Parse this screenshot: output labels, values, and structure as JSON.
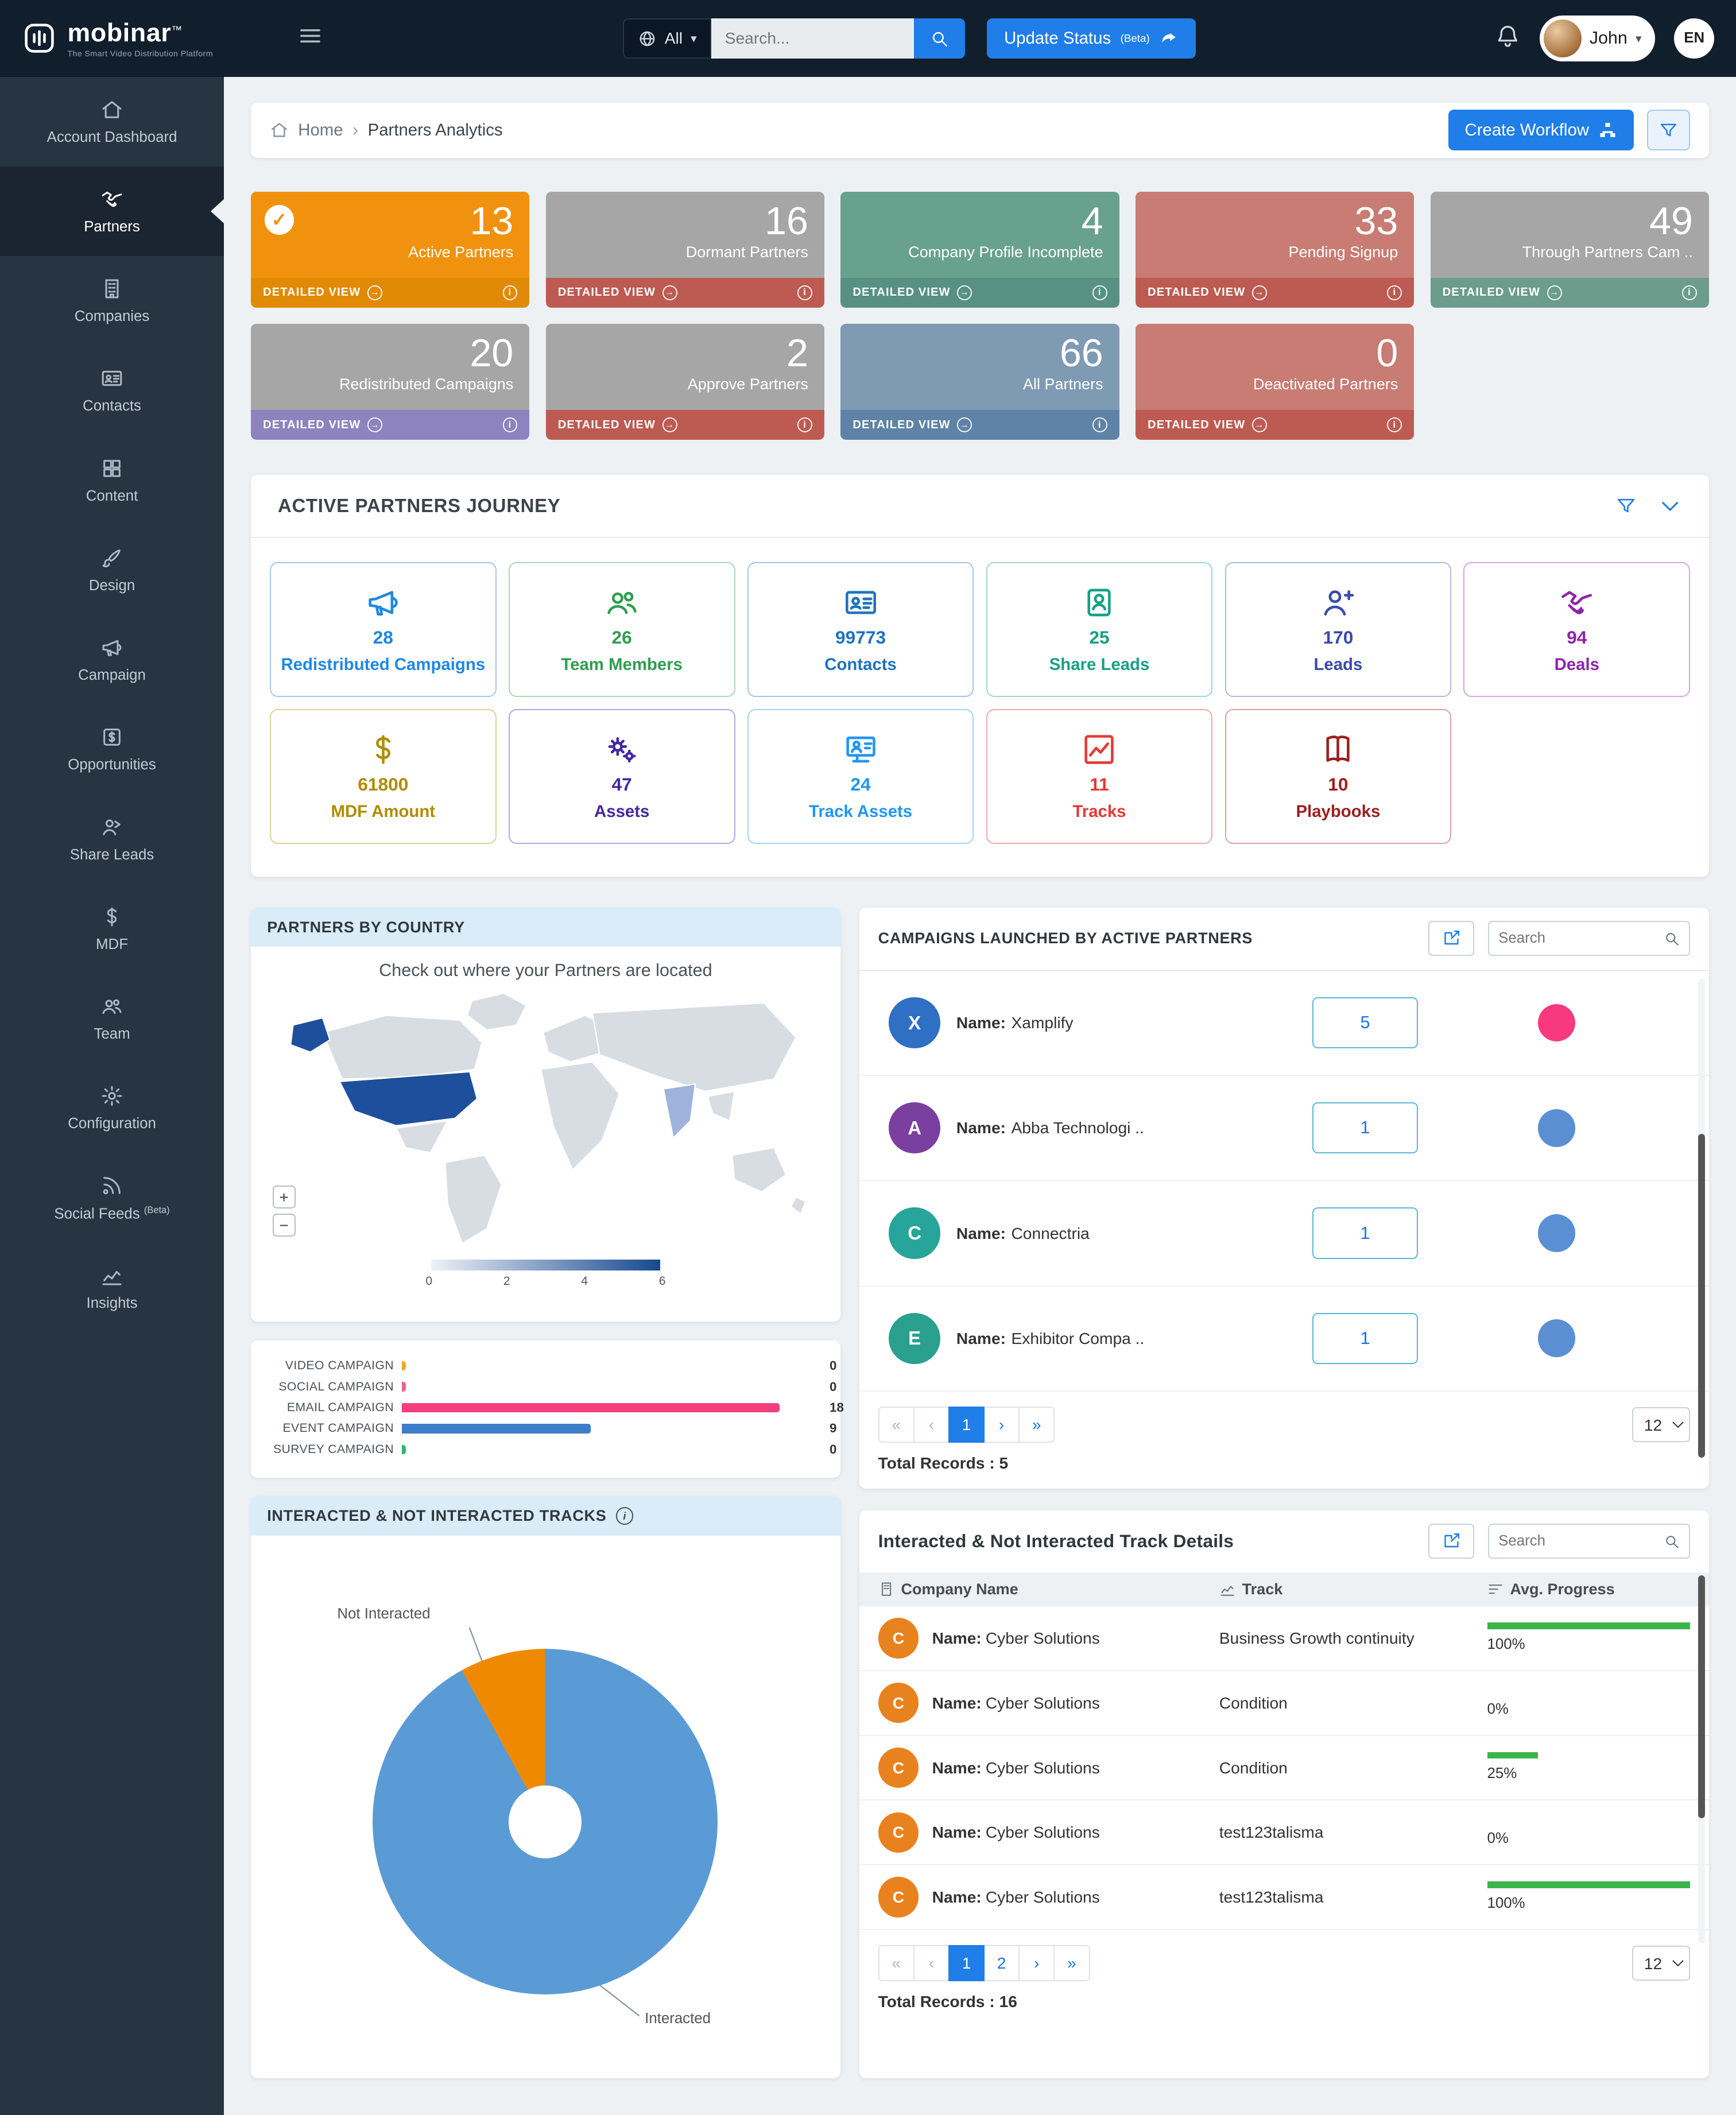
{
  "navbar": {
    "brand": "mobinar",
    "brand_tm": "™",
    "brand_tagline": "The Smart Video Distribution Platform",
    "scope_select": "All",
    "search_placeholder": "Search...",
    "update_status_label": "Update Status",
    "update_status_beta": "(Beta)",
    "user_name": "John",
    "language": "EN"
  },
  "sidebar": {
    "items": [
      {
        "label": "Account Dashboard"
      },
      {
        "label": "Partners"
      },
      {
        "label": "Companies"
      },
      {
        "label": "Contacts"
      },
      {
        "label": "Content"
      },
      {
        "label": "Design"
      },
      {
        "label": "Campaign"
      },
      {
        "label": "Opportunities"
      },
      {
        "label": "Share Leads"
      },
      {
        "label": "MDF"
      },
      {
        "label": "Team"
      },
      {
        "label": "Configuration"
      },
      {
        "label": "Social Feeds",
        "beta": "(Beta)"
      },
      {
        "label": "Insights"
      }
    ]
  },
  "breadcrumb": {
    "home": "Home",
    "current": "Partners Analytics"
  },
  "actions": {
    "create_workflow": "Create Workflow"
  },
  "labels": {
    "name_prefix": "Name:",
    "detailed_view": "DETAILED VIEW"
  },
  "pager": {
    "first": "«",
    "prev": "‹",
    "next": "›",
    "last": "»"
  },
  "stat_cards": [
    {
      "value": 13,
      "label": "Active Partners",
      "body_color": "#f0920e",
      "footer_color": "#e18a06"
    },
    {
      "value": 16,
      "label": "Dormant Partners",
      "body_color": "#a6a6a6",
      "footer_color": "#bd5b52"
    },
    {
      "value": 4,
      "label": "Company Profile Incomplete",
      "body_color": "#69a18f",
      "footer_color": "#589184"
    },
    {
      "value": 33,
      "label": "Pending Signup",
      "body_color": "#c87c73",
      "footer_color": "#bd5b52"
    },
    {
      "value": 49,
      "label": "Through Partners Cam ..",
      "body_color": "#a6a6a6",
      "footer_color": "#6b9c8c"
    },
    {
      "value": 20,
      "label": "Redistributed Campaigns",
      "body_color": "#a6a6a6",
      "footer_color": "#8d83bf"
    },
    {
      "value": 2,
      "label": "Approve Partners",
      "body_color": "#a6a6a6",
      "footer_color": "#bd5b52"
    },
    {
      "value": 66,
      "label": "All Partners",
      "body_color": "#7f9ab3",
      "footer_color": "#5f83a6"
    },
    {
      "value": 0,
      "label": "Deactivated Partners",
      "body_color": "#c87c73",
      "footer_color": "#bd5b52"
    }
  ],
  "journey": {
    "title": "ACTIVE PARTNERS JOURNEY",
    "tiles": [
      {
        "value": 28,
        "label": "Redistributed Campaigns",
        "color": "#1e88e5"
      },
      {
        "value": 26,
        "label": "Team Members",
        "color": "#2e9e4f"
      },
      {
        "value": 99773,
        "label": "Contacts",
        "color": "#1e73be"
      },
      {
        "value": 25,
        "label": "Share Leads",
        "color": "#16a085"
      },
      {
        "value": 170,
        "label": "Leads",
        "color": "#3949ab"
      },
      {
        "value": 94,
        "label": "Deals",
        "color": "#8e24aa"
      },
      {
        "value": 61800,
        "label": "MDF Amount",
        "color": "#b08c00"
      },
      {
        "value": 47,
        "label": "Assets",
        "color": "#4527a0"
      },
      {
        "value": 24,
        "label": "Track Assets",
        "color": "#2196f3"
      },
      {
        "value": 11,
        "label": "Tracks",
        "color": "#e53935"
      },
      {
        "value": 10,
        "label": "Playbooks",
        "color": "#9c1f1f"
      }
    ]
  },
  "partners_by_country": {
    "title": "PARTNERS BY COUNTRY",
    "subtitle": "Check out where your Partners are located",
    "zoom_in": "+",
    "zoom_out": "−"
  },
  "campaigns_launched": {
    "title": "CAMPAIGNS LAUNCHED BY ACTIVE PARTNERS",
    "search_placeholder": "Search",
    "rows": [
      {
        "initial": "X",
        "name": "Xamplify",
        "count": 5,
        "avatar_color": "#2f6fc4",
        "pie_color": "#f8397f"
      },
      {
        "initial": "A",
        "name": "Abba Technologi ..",
        "count": 1,
        "avatar_color": "#7b3fa0",
        "pie_color": "#5b8fd4"
      },
      {
        "initial": "C",
        "name": "Connectria",
        "count": 1,
        "avatar_color": "#27a59a",
        "pie_color": "#5b8fd4"
      },
      {
        "initial": "E",
        "name": "Exhibitor Compa ..",
        "count": 1,
        "avatar_color": "#2aa08f",
        "pie_color": "#5b8fd4"
      }
    ],
    "pages": [
      "1"
    ],
    "page_size": "12",
    "total_records": "Total Records : 5"
  },
  "tracks_overview": {
    "title": "INTERACTED & NOT INTERACTED TRACKS"
  },
  "track_details": {
    "title": "Interacted & Not Interacted Track Details",
    "search_placeholder": "Search",
    "columns": [
      "Company Name",
      "Track",
      "Avg. Progress"
    ],
    "rows": [
      {
        "initial": "C",
        "name": "Cyber Solutions",
        "track": "Business Growth continuity",
        "progress_val": 100,
        "progress_label": "100%"
      },
      {
        "initial": "C",
        "name": "Cyber Solutions",
        "track": "Condition",
        "progress_val": 0,
        "progress_label": "0%"
      },
      {
        "initial": "C",
        "name": "Cyber Solutions",
        "track": "Condition",
        "progress_val": 25,
        "progress_label": "25%"
      },
      {
        "initial": "C",
        "name": "Cyber Solutions",
        "track": "test123talisma",
        "progress_val": 0,
        "progress_label": "0%"
      },
      {
        "initial": "C",
        "name": "Cyber Solutions",
        "track": "test123talisma",
        "progress_val": 100,
        "progress_label": "100%"
      }
    ],
    "pages": [
      "1",
      "2"
    ],
    "page_size": "12",
    "total_records": "Total Records : 16"
  },
  "chart_data": [
    {
      "type": "bar",
      "orientation": "horizontal",
      "categories": [
        "VIDEO CAMPAIGN",
        "SOCIAL CAMPAIGN",
        "EMAIL CAMPAIGN",
        "EVENT CAMPAIGN",
        "SURVEY CAMPAIGN"
      ],
      "values": [
        0,
        0,
        18,
        9,
        0
      ],
      "colors": [
        "#f5a623",
        "#f06292",
        "#f43f7f",
        "#3c7dc8",
        "#2eb872"
      ],
      "xlim": [
        0,
        20
      ],
      "value_labels_shown": true
    },
    {
      "type": "pie",
      "title": "INTERACTED & NOT INTERACTED TRACKS",
      "labels": [
        "Interacted",
        "Not Interacted"
      ],
      "values_pct": [
        92,
        8
      ],
      "colors": [
        "#5b9bd5",
        "#ef8a00"
      ],
      "donut": true
    },
    {
      "type": "heatmap",
      "subtype": "world-map",
      "title": "PARTNERS BY COUNTRY",
      "subtitle": "Check out where your Partners are located",
      "colorbar_ticks": [
        0,
        2,
        4,
        6
      ],
      "colorbar_range": [
        0,
        6
      ],
      "countries": [
        {
          "name": "United States",
          "value": 6
        },
        {
          "name": "India",
          "value": 1
        }
      ]
    }
  ],
  "colors": {
    "accent_blue": "#1f7ee8",
    "link_blue": "#1a73e8",
    "navbar_bg": "#111e2b",
    "sidebar_bg": "#273442",
    "sidebar_active_bg": "#1a2531",
    "main_bg": "#edf1f4",
    "card_header_blue": "#d9ecf8",
    "progress_green": "#3bb54a",
    "progress_track": "#d9dde0",
    "map_country_high": "#1d4f9c",
    "map_country_low": "#9fb3dc",
    "map_land": "#d8dde3"
  }
}
